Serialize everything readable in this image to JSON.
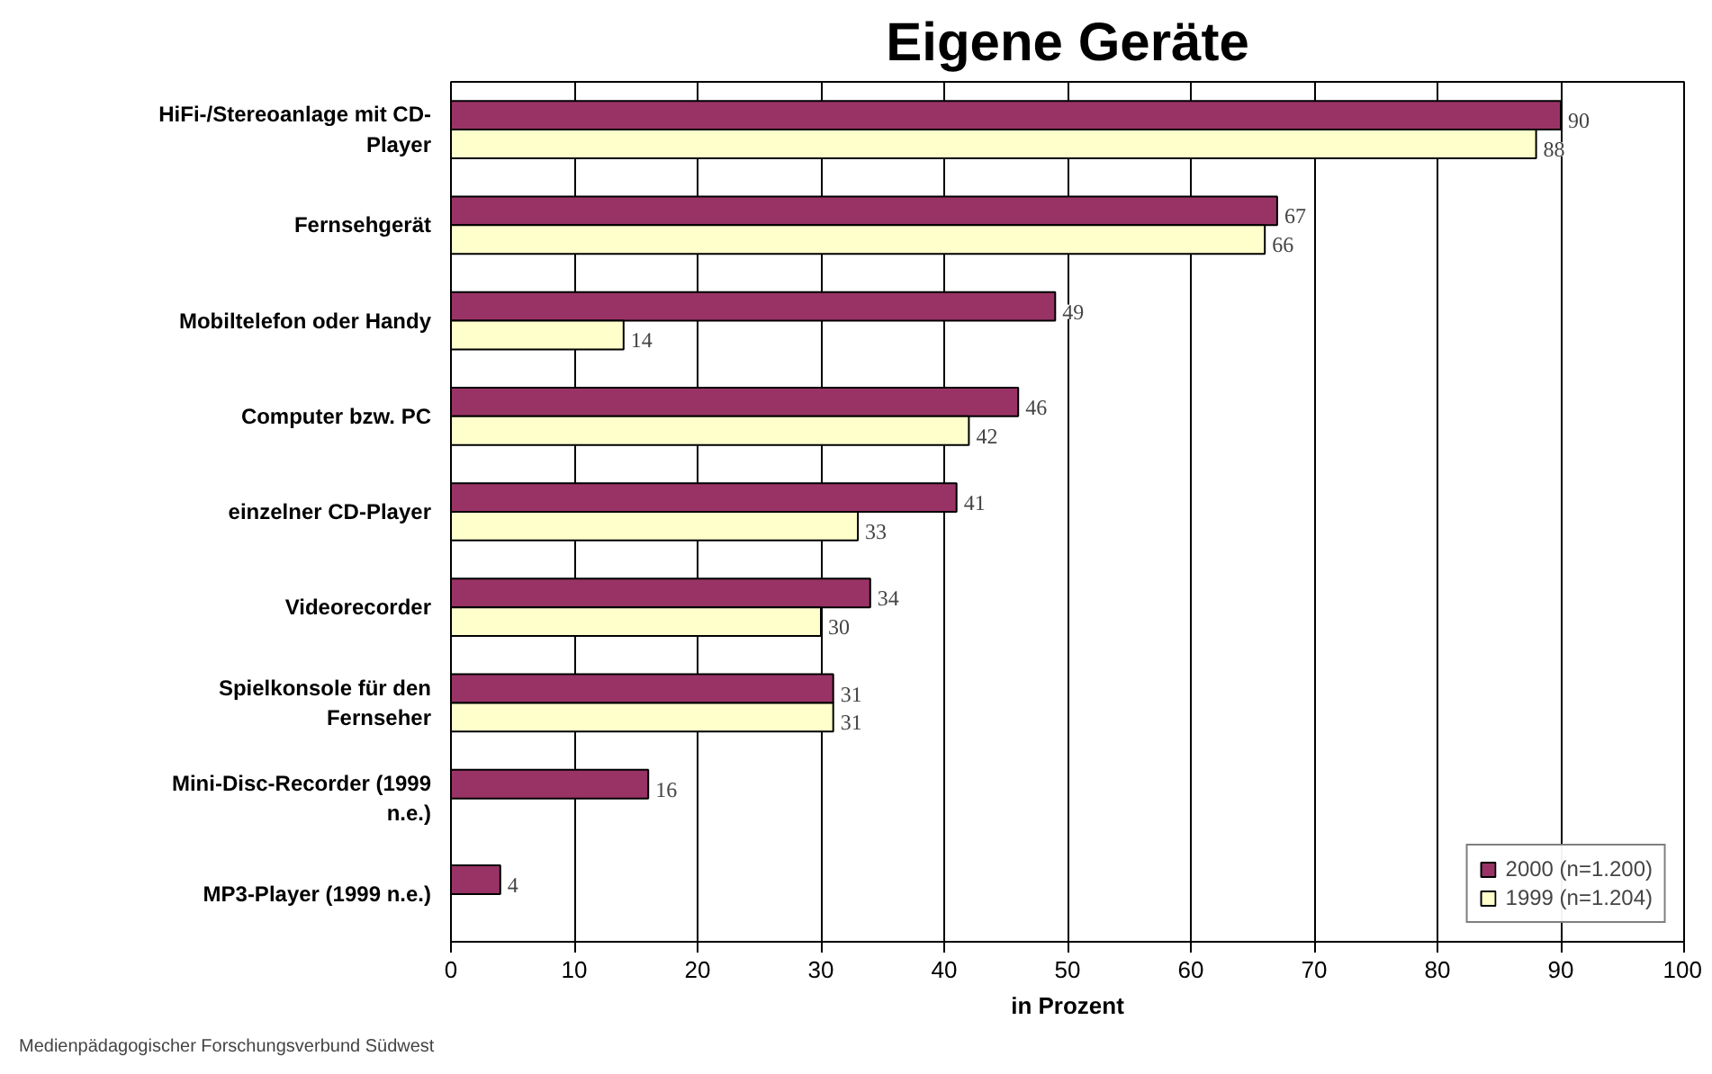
{
  "chart_data": {
    "type": "bar",
    "orientation": "horizontal",
    "title": "Eigene Geräte",
    "xlabel": "in Prozent",
    "categories": [
      "HiFi-/Stereoanlage mit CD-Player",
      "Fernsehgerät",
      "Mobiltelefon oder Handy",
      "Computer bzw. PC",
      "einzelner CD-Player",
      "Videorecorder",
      "Spielkonsole für den Fernseher",
      "Mini-Disc-Recorder (1999 n.e.)",
      "MP3-Player (1999 n.e.)"
    ],
    "series": [
      {
        "name": "2000 (n=1.200)",
        "color": "#993366",
        "values": [
          90,
          67,
          49,
          46,
          41,
          34,
          31,
          16,
          4
        ]
      },
      {
        "name": "1999 (n=1.204)",
        "color": "#ffffcc",
        "values": [
          88,
          66,
          14,
          42,
          33,
          30,
          31,
          null,
          null
        ]
      }
    ],
    "xlim": [
      0,
      100
    ],
    "xticks": [
      0,
      10,
      20,
      30,
      40,
      50,
      60,
      70,
      80,
      90,
      100
    ],
    "grid": "x",
    "legend": "bottom right",
    "data_labels": true,
    "annotations": [
      "Medienpädagogischer Forschungsverbund Südwest"
    ]
  }
}
